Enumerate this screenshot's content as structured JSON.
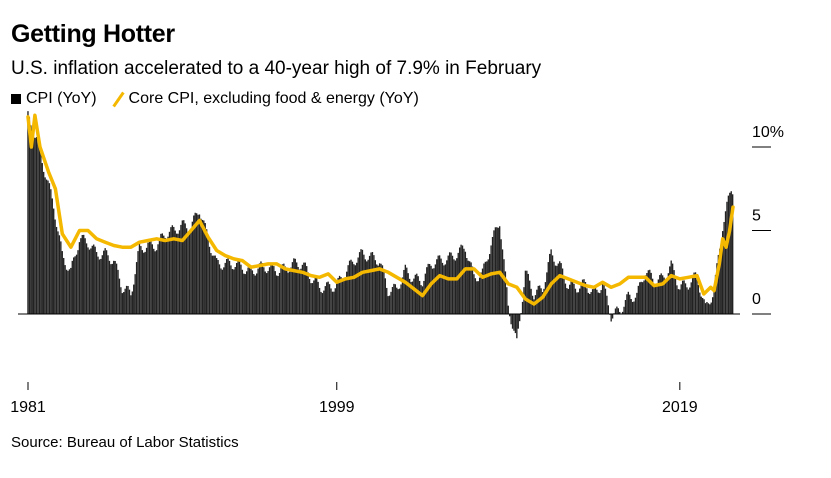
{
  "title": "Getting Hotter",
  "subtitle": "U.S. inflation accelerated to a 40-year high of 7.9% in February",
  "legend": {
    "cpi": "CPI (YoY)",
    "core": "Core CPI, excluding food & energy (YoY)"
  },
  "source": "Source: Bureau of Labor Statistics",
  "colors": {
    "cpi": "#222222",
    "core": "#f5b800",
    "axis": "#000000"
  },
  "chart_data": {
    "type": "bar",
    "ylim": [
      -2.5,
      11
    ],
    "xlim": [
      1981.0,
      2022.1
    ],
    "y_ticks": [
      {
        "value": 10,
        "label": "10%"
      },
      {
        "value": 5,
        "label": "5"
      },
      {
        "value": 0,
        "label": "0"
      }
    ],
    "x_ticks": [
      {
        "value": 1981,
        "label": "1981"
      },
      {
        "value": 1999,
        "label": "1999"
      },
      {
        "value": 2019,
        "label": "2019"
      }
    ],
    "series": [
      {
        "name": "CPI (YoY)",
        "type": "bar",
        "points": [
          [
            1981.0,
            11.8
          ],
          [
            1981.5,
            10.5
          ],
          [
            1982.0,
            8.5
          ],
          [
            1982.5,
            6.5
          ],
          [
            1983.0,
            3.5
          ],
          [
            1983.5,
            2.5
          ],
          [
            1984.0,
            4.5
          ],
          [
            1984.5,
            4.3
          ],
          [
            1985.0,
            3.6
          ],
          [
            1985.5,
            3.6
          ],
          [
            1986.0,
            3.2
          ],
          [
            1986.5,
            1.6
          ],
          [
            1987.0,
            1.2
          ],
          [
            1987.5,
            3.9
          ],
          [
            1988.0,
            4.1
          ],
          [
            1988.5,
            4.1
          ],
          [
            1989.0,
            4.8
          ],
          [
            1989.5,
            5.0
          ],
          [
            1990.0,
            5.3
          ],
          [
            1990.5,
            5.2
          ],
          [
            1991.0,
            6.3
          ],
          [
            1991.5,
            4.5
          ],
          [
            1992.0,
            3.0
          ],
          [
            1992.5,
            3.0
          ],
          [
            1993.0,
            3.0
          ],
          [
            1993.5,
            2.8
          ],
          [
            1994.0,
            2.5
          ],
          [
            1994.5,
            2.8
          ],
          [
            1995.0,
            2.8
          ],
          [
            1995.5,
            2.6
          ],
          [
            1996.0,
            2.7
          ],
          [
            1996.5,
            3.0
          ],
          [
            1997.0,
            3.0
          ],
          [
            1997.5,
            2.2
          ],
          [
            1998.0,
            1.6
          ],
          [
            1998.5,
            1.6
          ],
          [
            1999.0,
            1.7
          ],
          [
            1999.5,
            2.5
          ],
          [
            2000.0,
            3.2
          ],
          [
            2000.5,
            3.6
          ],
          [
            2001.0,
            3.4
          ],
          [
            2001.5,
            3.2
          ],
          [
            2002.0,
            1.4
          ],
          [
            2002.5,
            1.5
          ],
          [
            2003.0,
            2.6
          ],
          [
            2003.5,
            2.1
          ],
          [
            2004.0,
            2.0
          ],
          [
            2004.5,
            3.0
          ],
          [
            2005.0,
            3.2
          ],
          [
            2005.5,
            3.3
          ],
          [
            2006.0,
            3.6
          ],
          [
            2006.5,
            4.0
          ],
          [
            2007.0,
            2.2
          ],
          [
            2007.5,
            2.4
          ],
          [
            2008.0,
            4.2
          ],
          [
            2008.5,
            5.6
          ],
          [
            2009.0,
            0.5
          ],
          [
            2009.5,
            -1.8
          ],
          [
            2010.0,
            2.5
          ],
          [
            2010.5,
            1.2
          ],
          [
            2011.0,
            1.5
          ],
          [
            2011.5,
            3.6
          ],
          [
            2012.0,
            2.9
          ],
          [
            2012.5,
            1.7
          ],
          [
            2013.0,
            1.6
          ],
          [
            2013.5,
            1.8
          ],
          [
            2014.0,
            1.2
          ],
          [
            2014.5,
            1.8
          ],
          [
            2015.0,
            -0.1
          ],
          [
            2015.5,
            0.2
          ],
          [
            2016.0,
            1.0
          ],
          [
            2016.5,
            1.1
          ],
          [
            2017.0,
            2.6
          ],
          [
            2017.5,
            2.0
          ],
          [
            2018.0,
            2.1
          ],
          [
            2018.5,
            2.9
          ],
          [
            2019.0,
            1.6
          ],
          [
            2019.5,
            1.8
          ],
          [
            2020.0,
            2.3
          ],
          [
            2020.5,
            0.3
          ],
          [
            2021.0,
            1.4
          ],
          [
            2021.5,
            5.3
          ],
          [
            2022.0,
            7.5
          ]
        ]
      },
      {
        "name": "Core CPI, excluding food & energy (YoY)",
        "type": "line",
        "points": [
          [
            1981.0,
            11.8
          ],
          [
            1981.2,
            10.0
          ],
          [
            1981.4,
            11.9
          ],
          [
            1981.7,
            10.0
          ],
          [
            1982.2,
            8.5
          ],
          [
            1982.6,
            7.5
          ],
          [
            1983.0,
            4.8
          ],
          [
            1983.5,
            4.0
          ],
          [
            1984.0,
            5.0
          ],
          [
            1984.5,
            5.0
          ],
          [
            1985.0,
            4.5
          ],
          [
            1985.5,
            4.3
          ],
          [
            1986.0,
            4.1
          ],
          [
            1986.5,
            4.0
          ],
          [
            1987.0,
            4.0
          ],
          [
            1987.5,
            4.3
          ],
          [
            1988.0,
            4.4
          ],
          [
            1988.5,
            4.5
          ],
          [
            1989.0,
            4.4
          ],
          [
            1989.5,
            4.5
          ],
          [
            1990.0,
            4.4
          ],
          [
            1990.5,
            5.0
          ],
          [
            1991.0,
            5.6
          ],
          [
            1991.5,
            4.6
          ],
          [
            1992.0,
            3.8
          ],
          [
            1992.5,
            3.5
          ],
          [
            1993.0,
            3.3
          ],
          [
            1993.5,
            3.2
          ],
          [
            1994.0,
            2.8
          ],
          [
            1994.5,
            2.9
          ],
          [
            1995.0,
            3.0
          ],
          [
            1995.5,
            3.0
          ],
          [
            1996.0,
            2.7
          ],
          [
            1996.5,
            2.6
          ],
          [
            1997.0,
            2.5
          ],
          [
            1997.5,
            2.3
          ],
          [
            1998.0,
            2.2
          ],
          [
            1998.5,
            2.4
          ],
          [
            1999.0,
            1.9
          ],
          [
            1999.5,
            2.1
          ],
          [
            2000.0,
            2.2
          ],
          [
            2000.5,
            2.5
          ],
          [
            2001.0,
            2.6
          ],
          [
            2001.5,
            2.7
          ],
          [
            2002.0,
            2.5
          ],
          [
            2002.5,
            2.2
          ],
          [
            2003.0,
            1.9
          ],
          [
            2003.5,
            1.5
          ],
          [
            2004.0,
            1.1
          ],
          [
            2004.5,
            1.8
          ],
          [
            2005.0,
            2.3
          ],
          [
            2005.5,
            2.1
          ],
          [
            2006.0,
            2.1
          ],
          [
            2006.5,
            2.7
          ],
          [
            2007.0,
            2.7
          ],
          [
            2007.5,
            2.2
          ],
          [
            2008.0,
            2.4
          ],
          [
            2008.5,
            2.5
          ],
          [
            2009.0,
            1.8
          ],
          [
            2009.5,
            1.6
          ],
          [
            2010.0,
            0.9
          ],
          [
            2010.5,
            0.6
          ],
          [
            2011.0,
            1.0
          ],
          [
            2011.5,
            1.8
          ],
          [
            2012.0,
            2.3
          ],
          [
            2012.5,
            2.1
          ],
          [
            2013.0,
            1.9
          ],
          [
            2013.5,
            1.7
          ],
          [
            2014.0,
            1.6
          ],
          [
            2014.5,
            1.9
          ],
          [
            2015.0,
            1.6
          ],
          [
            2015.5,
            1.8
          ],
          [
            2016.0,
            2.2
          ],
          [
            2016.5,
            2.2
          ],
          [
            2017.0,
            2.2
          ],
          [
            2017.5,
            1.7
          ],
          [
            2018.0,
            1.8
          ],
          [
            2018.5,
            2.3
          ],
          [
            2019.0,
            2.1
          ],
          [
            2019.5,
            2.2
          ],
          [
            2020.0,
            2.3
          ],
          [
            2020.4,
            1.2
          ],
          [
            2020.8,
            1.6
          ],
          [
            2021.0,
            1.4
          ],
          [
            2021.3,
            3.0
          ],
          [
            2021.5,
            4.5
          ],
          [
            2021.7,
            4.0
          ],
          [
            2021.9,
            5.0
          ],
          [
            2022.1,
            6.4
          ]
        ]
      }
    ]
  }
}
